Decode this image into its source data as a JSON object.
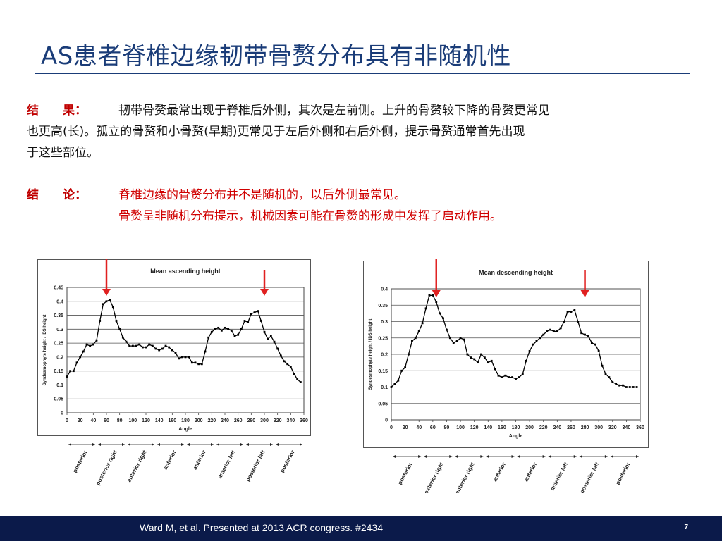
{
  "slide": {
    "title": "AS患者脊椎边缘韧带骨赘分布具有非随机性",
    "results_label": "结　　果：",
    "results_text_1": "韧带骨赘最常出现于脊椎后外侧，其次是左前侧。上升的骨赘较下降的骨赘更常见",
    "results_text_2": "也更高(长)。孤立的骨赘和小骨赘(早期)更常见于左后外侧和右后外侧，提示骨赘通常首先出现",
    "results_text_3": "于这些部位。",
    "conclusion_label": "结　　论：",
    "conclusion_text_1": "脊椎边缘的骨赘分布并不是随机的，以后外侧最常见。",
    "conclusion_text_2": "骨赘呈非随机分布提示，机械因素可能在骨赘的形成中发挥了启动作用。",
    "footer": "Ward M, et al. Presented at 2013 ACR congress. #2434",
    "page_number": "7"
  },
  "colors": {
    "title": "#1a3c78",
    "label": "#c00000",
    "arrow": "#e02020",
    "footer_bg": "#0b1a4a"
  },
  "chart_data": [
    {
      "type": "line",
      "title": "Mean ascending height",
      "xlabel": "Angle",
      "ylabel": "Syndesmophyte height / IDS height",
      "xlim": [
        0,
        360
      ],
      "ylim": [
        0,
        0.45
      ],
      "xticks": [
        "0",
        "20",
        "40",
        "60",
        "80",
        "100",
        "120",
        "140",
        "160",
        "180",
        "200",
        "220",
        "240",
        "260",
        "280",
        "300",
        "320",
        "340",
        "360"
      ],
      "yticks": [
        "0",
        "0.05",
        "0.1",
        "0.15",
        "0.2",
        "0.25",
        "0.3",
        "0.35",
        "0.4",
        "0.45"
      ],
      "grid": true,
      "arrows_at_x": [
        60,
        300
      ],
      "regions": [
        "posterior",
        "posterior right",
        "anterior right",
        "anterior",
        "anterior",
        "anterior left",
        "posterior left",
        "posterior"
      ],
      "series": [
        {
          "x": [
            0,
            5,
            10,
            15,
            20,
            25,
            30,
            35,
            40,
            45,
            50,
            55,
            60,
            65,
            70,
            75,
            80,
            85,
            90,
            95,
            100,
            105,
            110,
            115,
            120,
            125,
            130,
            135,
            140,
            145,
            150,
            155,
            160,
            165,
            170,
            175,
            180,
            185,
            190,
            195,
            200,
            205,
            210,
            215,
            220,
            225,
            230,
            235,
            240,
            245,
            250,
            255,
            260,
            265,
            270,
            275,
            280,
            285,
            290,
            295,
            300,
            305,
            310,
            315,
            320,
            325,
            330,
            335,
            340,
            345,
            350,
            355
          ],
          "values": [
            0.13,
            0.15,
            0.15,
            0.18,
            0.2,
            0.22,
            0.245,
            0.24,
            0.245,
            0.26,
            0.33,
            0.39,
            0.4,
            0.405,
            0.38,
            0.33,
            0.3,
            0.27,
            0.255,
            0.24,
            0.24,
            0.24,
            0.245,
            0.235,
            0.235,
            0.245,
            0.24,
            0.23,
            0.225,
            0.23,
            0.24,
            0.235,
            0.225,
            0.215,
            0.195,
            0.2,
            0.2,
            0.2,
            0.18,
            0.18,
            0.175,
            0.175,
            0.22,
            0.27,
            0.29,
            0.3,
            0.305,
            0.295,
            0.305,
            0.3,
            0.295,
            0.275,
            0.28,
            0.3,
            0.33,
            0.325,
            0.355,
            0.36,
            0.365,
            0.33,
            0.29,
            0.265,
            0.275,
            0.255,
            0.23,
            0.205,
            0.185,
            0.175,
            0.165,
            0.14,
            0.12,
            0.11
          ]
        }
      ]
    },
    {
      "type": "line",
      "title": "Mean descending height",
      "xlabel": "Angle",
      "ylabel": "Syndesmophyte height / IDS height",
      "xlim": [
        0,
        360
      ],
      "ylim": [
        0,
        0.4
      ],
      "xticks": [
        "0",
        "20",
        "40",
        "60",
        "80",
        "100",
        "120",
        "140",
        "160",
        "180",
        "200",
        "220",
        "240",
        "260",
        "280",
        "300",
        "320",
        "340",
        "360"
      ],
      "yticks": [
        "0",
        "0.05",
        "0.1",
        "0.15",
        "0.2",
        "0.25",
        "0.3",
        "0.35",
        "0.4"
      ],
      "grid": true,
      "arrows_at_x": [
        65,
        280
      ],
      "regions": [
        "posterior",
        "posterior right",
        "anterior right",
        "anterior",
        "anterior",
        "anterior left",
        "posterior left",
        "posterior"
      ],
      "series": [
        {
          "x": [
            0,
            5,
            10,
            15,
            20,
            25,
            30,
            35,
            40,
            45,
            50,
            55,
            60,
            65,
            70,
            75,
            80,
            85,
            90,
            95,
            100,
            105,
            110,
            115,
            120,
            125,
            130,
            135,
            140,
            145,
            150,
            155,
            160,
            165,
            170,
            175,
            180,
            185,
            190,
            195,
            200,
            205,
            210,
            215,
            220,
            225,
            230,
            235,
            240,
            245,
            250,
            255,
            260,
            265,
            270,
            275,
            280,
            285,
            290,
            295,
            300,
            305,
            310,
            315,
            320,
            325,
            330,
            335,
            340,
            345,
            350,
            355
          ],
          "values": [
            0.1,
            0.11,
            0.12,
            0.15,
            0.16,
            0.2,
            0.24,
            0.25,
            0.27,
            0.295,
            0.34,
            0.38,
            0.38,
            0.36,
            0.325,
            0.31,
            0.275,
            0.25,
            0.235,
            0.24,
            0.25,
            0.245,
            0.2,
            0.19,
            0.185,
            0.175,
            0.2,
            0.19,
            0.175,
            0.18,
            0.155,
            0.135,
            0.13,
            0.135,
            0.13,
            0.13,
            0.125,
            0.13,
            0.14,
            0.18,
            0.21,
            0.23,
            0.24,
            0.25,
            0.26,
            0.27,
            0.275,
            0.27,
            0.27,
            0.28,
            0.3,
            0.33,
            0.33,
            0.335,
            0.3,
            0.265,
            0.26,
            0.255,
            0.235,
            0.23,
            0.21,
            0.165,
            0.14,
            0.13,
            0.115,
            0.11,
            0.105,
            0.105,
            0.1,
            0.1,
            0.1,
            0.1
          ]
        }
      ]
    }
  ]
}
